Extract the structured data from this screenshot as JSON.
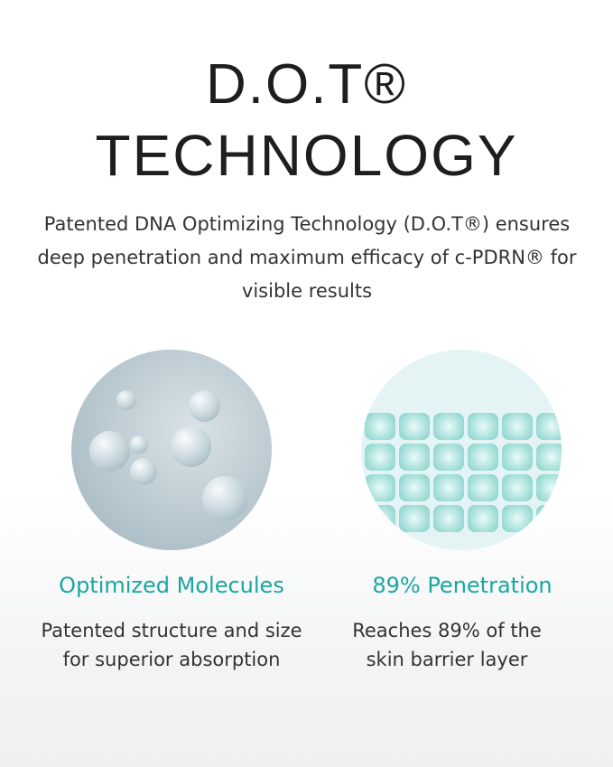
{
  "title_line1": "D.O.T®",
  "title_line2": "TECHNOLOGY",
  "subtitle": "Patented DNA Optimizing Technology (D.O.T®) ensures deep penetration and maximum efficacy of c-PDRN®  for visible results",
  "features": [
    {
      "heading": "Optimized Molecules",
      "description": "Patented structure and size for superior absorption",
      "image": "molecule-image"
    },
    {
      "heading": "89% Penetration",
      "description": "Reaches 89% of the skin barrier layer",
      "image": "cell-grid-image"
    }
  ],
  "colors": {
    "accent": "#1aa7a0"
  }
}
